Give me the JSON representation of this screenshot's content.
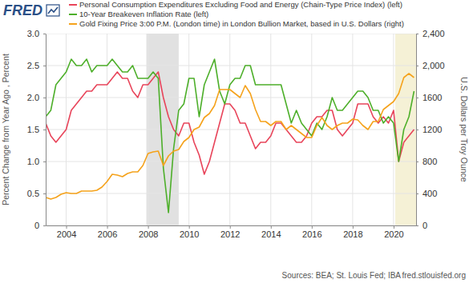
{
  "chart_data": {
    "type": "line",
    "logo": "FRED",
    "ylabel": "Percent Change from Year Ago , Percent",
    "y2label": "U.S. Dollars per Troy Ounce",
    "source": "Sources: BEA; St. Louis Fed; IBA",
    "url": "fred.stlouisfed.org",
    "grid": true,
    "xlim": [
      2003,
      2021.1
    ],
    "xticks": [
      2004,
      2006,
      2008,
      2010,
      2012,
      2014,
      2016,
      2018,
      2020
    ],
    "ylim": [
      0,
      3
    ],
    "yticks": [
      0,
      0.5,
      {
        "value": 1,
        "label": "1.0"
      },
      1.5,
      {
        "value": 2,
        "label": "2.0"
      },
      2.5,
      {
        "value": 3,
        "label": "3.0"
      }
    ],
    "y2lim": [
      0,
      2400
    ],
    "y2ticks": [
      0,
      400,
      800,
      1200,
      1600,
      {
        "value": 2000,
        "label": "2,000"
      },
      {
        "value": 2400,
        "label": "2,400"
      }
    ],
    "shaded_periods": [
      {
        "start": 2007.92,
        "end": 2009.5,
        "color": "#e1e1e1"
      },
      {
        "start": 2020.08,
        "end": 2021.1,
        "color": "#f5f1d6"
      }
    ],
    "x": [
      2003,
      2003.25,
      2003.5,
      2003.75,
      2004,
      2004.25,
      2004.5,
      2004.75,
      2005,
      2005.25,
      2005.5,
      2005.75,
      2006,
      2006.25,
      2006.5,
      2006.75,
      2007,
      2007.25,
      2007.5,
      2007.75,
      2008,
      2008.25,
      2008.5,
      2008.75,
      2009,
      2009.25,
      2009.5,
      2009.75,
      2010,
      2010.25,
      2010.5,
      2010.75,
      2011,
      2011.25,
      2011.5,
      2011.75,
      2012,
      2012.25,
      2012.5,
      2012.75,
      2013,
      2013.25,
      2013.5,
      2013.75,
      2014,
      2014.25,
      2014.5,
      2014.75,
      2015,
      2015.25,
      2015.5,
      2015.75,
      2016,
      2016.25,
      2016.5,
      2016.75,
      2017,
      2017.25,
      2017.5,
      2017.75,
      2018,
      2018.25,
      2018.5,
      2018.75,
      2019,
      2019.25,
      2019.5,
      2019.75,
      2020,
      2020.25,
      2020.5,
      2020.75,
      2021
    ],
    "series": [
      {
        "name": "Personal Consumption Expenditures Excluding Food and Energy (Chain-Type Price Index) (left)",
        "color": "#e8445a",
        "values": [
          1.6,
          1.4,
          1.3,
          1.4,
          1.5,
          1.8,
          1.9,
          2.0,
          2.1,
          2.1,
          2.2,
          2.2,
          2.2,
          2.3,
          2.4,
          2.3,
          2.3,
          2.1,
          2.0,
          2.2,
          2.2,
          2.3,
          2.4,
          2.0,
          1.7,
          1.5,
          1.4,
          1.6,
          1.6,
          1.3,
          1.1,
          0.8,
          1.0,
          1.3,
          1.6,
          1.9,
          1.9,
          1.8,
          1.6,
          1.6,
          1.4,
          1.2,
          1.3,
          1.3,
          1.4,
          1.6,
          1.6,
          1.5,
          1.4,
          1.3,
          1.3,
          1.4,
          1.6,
          1.7,
          1.7,
          1.8,
          1.8,
          1.5,
          1.4,
          1.5,
          1.6,
          1.9,
          1.9,
          1.9,
          1.7,
          1.6,
          1.7,
          1.6,
          1.8,
          1.0,
          1.3,
          1.4,
          1.5
        ]
      },
      {
        "name": "10-Year Breakeven Inflation Rate (left)",
        "color": "#4daf2a",
        "values": [
          1.7,
          1.8,
          2.2,
          2.3,
          2.4,
          2.6,
          2.5,
          2.5,
          2.6,
          2.4,
          2.5,
          2.5,
          2.5,
          2.6,
          2.5,
          2.4,
          2.4,
          2.5,
          2.3,
          2.3,
          2.3,
          2.4,
          2.3,
          0.9,
          0.2,
          1.2,
          1.8,
          1.9,
          2.3,
          2.3,
          1.7,
          2.2,
          2.4,
          2.6,
          2.1,
          1.9,
          2.2,
          2.3,
          2.3,
          2.5,
          2.5,
          2.2,
          2.2,
          2.2,
          2.2,
          2.2,
          2.2,
          1.9,
          1.6,
          1.8,
          1.6,
          1.5,
          1.4,
          1.6,
          1.5,
          1.7,
          2.0,
          1.8,
          1.8,
          1.9,
          2.0,
          2.1,
          2.1,
          2.0,
          1.8,
          1.8,
          1.6,
          1.7,
          1.6,
          1.0,
          1.5,
          1.7,
          2.1
        ]
      },
      {
        "name": "Gold Fixing Price 3:00 P.M. (London time) in London Bullion Market, based in U.S. Dollars (right)",
        "color": "#f5a21b",
        "axis": "y2",
        "values": [
          350,
          330,
          350,
          390,
          410,
          400,
          400,
          430,
          430,
          430,
          440,
          480,
          550,
          640,
          630,
          610,
          650,
          670,
          670,
          750,
          900,
          920,
          930,
          750,
          870,
          930,
          950,
          1050,
          1100,
          1200,
          1230,
          1350,
          1400,
          1500,
          1700,
          1700,
          1700,
          1650,
          1600,
          1750,
          1650,
          1450,
          1300,
          1300,
          1250,
          1300,
          1300,
          1200,
          1250,
          1200,
          1150,
          1100,
          1100,
          1250,
          1350,
          1250,
          1200,
          1250,
          1280,
          1280,
          1330,
          1320,
          1250,
          1200,
          1300,
          1300,
          1450,
          1500,
          1550,
          1650,
          1850,
          1900,
          1850
        ]
      }
    ]
  }
}
